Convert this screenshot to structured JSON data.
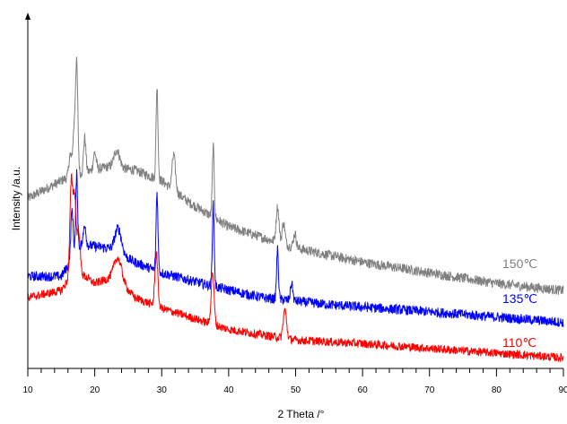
{
  "chart_data": {
    "type": "line",
    "xlabel": "2 Theta /°",
    "ylabel": "Intensity /a.u.",
    "xlim": [
      10,
      90
    ],
    "ylim": [
      0,
      100
    ],
    "y_ticks_shown": false,
    "x_major_ticks": [
      10,
      20,
      30,
      40,
      50,
      60,
      70,
      80,
      90
    ],
    "x_tick_labels": [
      "10",
      "20",
      "30",
      "40",
      "50",
      "60",
      "70",
      "80",
      "90"
    ],
    "grid": false,
    "legend": "none",
    "series": [
      {
        "name": "150℃",
        "color": "#808080",
        "baseline": [
          [
            10,
            48
          ],
          [
            16,
            54
          ],
          [
            22,
            57
          ],
          [
            26,
            56
          ],
          [
            30,
            53
          ],
          [
            34,
            47
          ],
          [
            40,
            40
          ],
          [
            50,
            34
          ],
          [
            60,
            30
          ],
          [
            70,
            27
          ],
          [
            80,
            24
          ],
          [
            90,
            22
          ]
        ],
        "peaks": [
          [
            17.3,
            30,
            0.25
          ],
          [
            16.9,
            12,
            0.3
          ],
          [
            16.3,
            6,
            0.25
          ],
          [
            18.5,
            10,
            0.25
          ],
          [
            20.0,
            5,
            0.3
          ],
          [
            23.3,
            5,
            0.6
          ],
          [
            29.3,
            26,
            0.2
          ],
          [
            31.8,
            10,
            0.35
          ],
          [
            37.7,
            20,
            0.2
          ],
          [
            47.3,
            10,
            0.3
          ],
          [
            48.2,
            6,
            0.3
          ],
          [
            49.9,
            4,
            0.3
          ]
        ],
        "noise": 1.4
      },
      {
        "name": "135℃",
        "color": "#0000ff",
        "baseline": [
          [
            10,
            26
          ],
          [
            15,
            26
          ],
          [
            18,
            35
          ],
          [
            22,
            34
          ],
          [
            26,
            30
          ],
          [
            30,
            27
          ],
          [
            38,
            23
          ],
          [
            45,
            20
          ],
          [
            55,
            18
          ],
          [
            70,
            16
          ],
          [
            90,
            13
          ]
        ],
        "peaks": [
          [
            17.3,
            22,
            0.2
          ],
          [
            16.6,
            14,
            0.25
          ],
          [
            18.5,
            6,
            0.25
          ],
          [
            23.5,
            7,
            0.7
          ],
          [
            29.3,
            22,
            0.2
          ],
          [
            37.7,
            23,
            0.2
          ],
          [
            47.3,
            14,
            0.2
          ],
          [
            49.4,
            5,
            0.25
          ]
        ],
        "noise": 1.4
      },
      {
        "name": "110℃",
        "color": "#ff0000",
        "baseline": [
          [
            10,
            20
          ],
          [
            15,
            22
          ],
          [
            17,
            28
          ],
          [
            20,
            24
          ],
          [
            23,
            26
          ],
          [
            26,
            20
          ],
          [
            30,
            17
          ],
          [
            35,
            14
          ],
          [
            40,
            11
          ],
          [
            50,
            8
          ],
          [
            60,
            7
          ],
          [
            75,
            5
          ],
          [
            90,
            3
          ]
        ],
        "peaks": [
          [
            16.5,
            26,
            0.3
          ],
          [
            17.0,
            20,
            0.3
          ],
          [
            17.6,
            12,
            0.3
          ],
          [
            23.5,
            6,
            0.8
          ],
          [
            29.2,
            15,
            0.3
          ],
          [
            37.6,
            15,
            0.3
          ],
          [
            48.4,
            8,
            0.35
          ]
        ],
        "noise": 1.2
      }
    ]
  }
}
